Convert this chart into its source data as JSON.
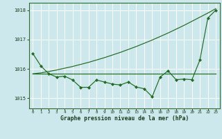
{
  "background_color": "#cde8ec",
  "grid_color": "#ffffff",
  "line_color": "#1f6b1f",
  "x_labels": [
    "0",
    "1",
    "2",
    "3",
    "4",
    "5",
    "6",
    "7",
    "8",
    "9",
    "10",
    "11",
    "12",
    "13",
    "14",
    "15",
    "16",
    "17",
    "18",
    "19",
    "20",
    "21",
    "22",
    "23"
  ],
  "xlabel": "Graphe pression niveau de la mer (hPa)",
  "ylim": [
    1014.65,
    1018.25
  ],
  "yticks": [
    1015,
    1016,
    1017,
    1018
  ],
  "series": {
    "zigzag": [
      1016.52,
      1016.1,
      1015.83,
      1015.72,
      1015.75,
      1015.62,
      1015.37,
      1015.37,
      1015.62,
      1015.55,
      1015.48,
      1015.45,
      1015.55,
      1015.38,
      1015.32,
      1015.05,
      1015.72,
      1015.93,
      1015.63,
      1015.65,
      1015.63,
      1016.3,
      1017.73,
      1018.0
    ],
    "flat": [
      1015.83,
      1015.83,
      1015.83,
      1015.83,
      1015.83,
      1015.83,
      1015.83,
      1015.83,
      1015.83,
      1015.83,
      1015.83,
      1015.83,
      1015.83,
      1015.83,
      1015.83,
      1015.83,
      1015.83,
      1015.83,
      1015.83,
      1015.83,
      1015.83,
      1015.83,
      1015.83,
      1015.83
    ],
    "rising": [
      1015.83,
      1015.86,
      1015.91,
      1015.96,
      1016.02,
      1016.08,
      1016.15,
      1016.22,
      1016.3,
      1016.38,
      1016.47,
      1016.56,
      1016.66,
      1016.76,
      1016.87,
      1016.98,
      1017.1,
      1017.22,
      1017.35,
      1017.48,
      1017.62,
      1017.76,
      1017.9,
      1018.05
    ]
  }
}
